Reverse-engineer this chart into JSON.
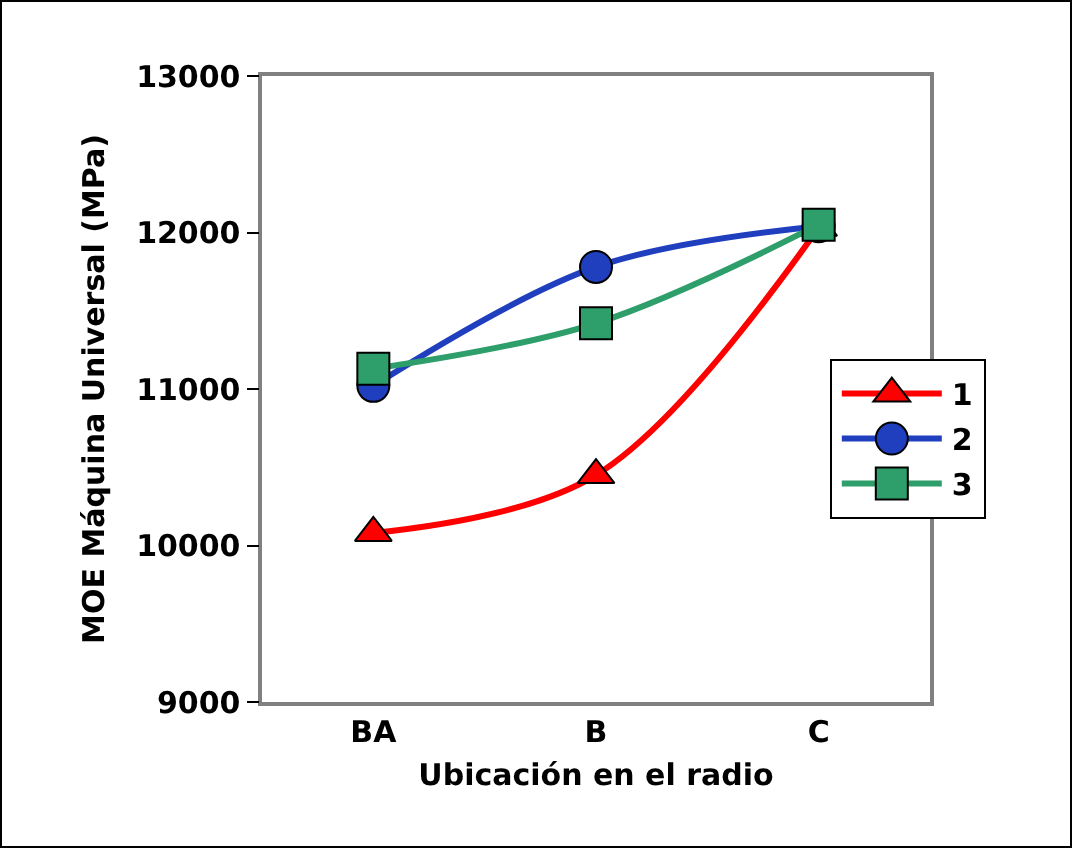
{
  "chart_data": {
    "type": "line",
    "xlabel": "Ubicación en el radio",
    "ylabel": "MOE Máquina Universal (MPa)",
    "categories": [
      "BA",
      "B",
      "C"
    ],
    "series": [
      {
        "name": "1",
        "color": "#ff0000",
        "marker": "triangle",
        "values": [
          10080,
          10450,
          12030
        ]
      },
      {
        "name": "2",
        "color": "#1f3fbf",
        "marker": "circle",
        "values": [
          11020,
          11780,
          12040
        ]
      },
      {
        "name": "3",
        "color": "#2e9e6b",
        "marker": "square",
        "values": [
          11130,
          11420,
          12050
        ]
      }
    ],
    "ylim": [
      9000,
      13000
    ],
    "yticks": [
      9000,
      10000,
      11000,
      12000,
      13000
    ],
    "grid": false,
    "legend": "right",
    "line_style": "solid"
  }
}
